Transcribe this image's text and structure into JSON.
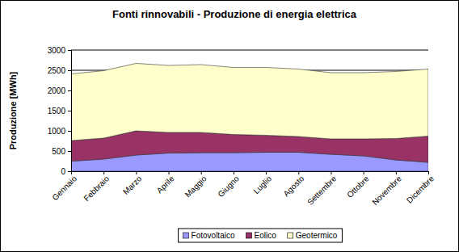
{
  "chart_data": {
    "type": "area",
    "stacked": true,
    "title": "Fonti rinnovabili - Produzione di energia elettrica",
    "ylabel": "Produzione [MWh]",
    "categories": [
      "Gennaio",
      "Febbraio",
      "Marzo",
      "Aprile",
      "Maggio",
      "Giugno",
      "Luglio",
      "Agosto",
      "Settembre",
      "Ottobre",
      "Novembre",
      "Dicembre"
    ],
    "series": [
      {
        "name": "Fotovoltaico",
        "color": "#9999ff",
        "values": [
          250,
          300,
          400,
          450,
          460,
          460,
          470,
          470,
          420,
          380,
          280,
          220
        ]
      },
      {
        "name": "Eolico",
        "color": "#993366",
        "values": [
          510,
          520,
          600,
          510,
          500,
          450,
          420,
          390,
          380,
          420,
          530,
          650
        ]
      },
      {
        "name": "Geotermico",
        "color": "#ffffcc",
        "values": [
          1650,
          1670,
          1670,
          1660,
          1680,
          1660,
          1680,
          1670,
          1640,
          1640,
          1660,
          1660
        ]
      }
    ],
    "ylim": [
      0,
      3000
    ],
    "yticks": [
      0,
      500,
      1000,
      1500,
      2000,
      2500,
      3000
    ],
    "grid": true,
    "legend": "bottom"
  }
}
